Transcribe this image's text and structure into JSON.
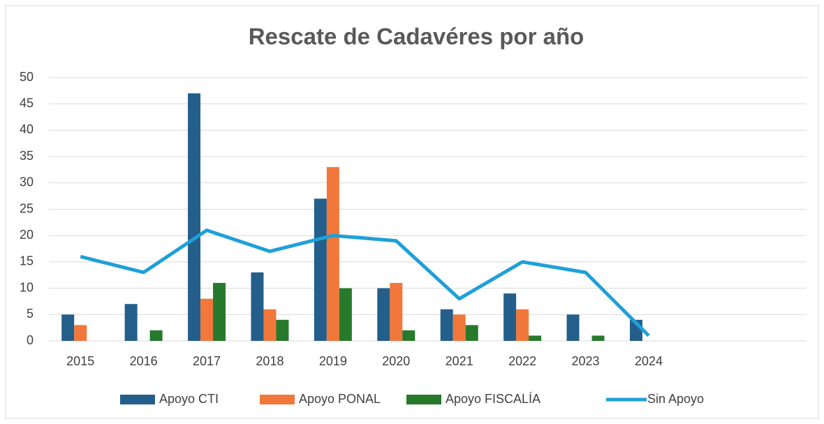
{
  "chart_data": {
    "type": "bar",
    "title": "Rescate de Cadavéres por año",
    "categories": [
      "2015",
      "2016",
      "2017",
      "2018",
      "2019",
      "2020",
      "2021",
      "2022",
      "2023",
      "2024",
      null,
      null
    ],
    "series": [
      {
        "name": "Apoyo CTI",
        "color": "#235f8a",
        "values": [
          5,
          7,
          47,
          13,
          27,
          10,
          6,
          9,
          5,
          4,
          null,
          null
        ]
      },
      {
        "name": "Apoyo PONAL",
        "color": "#f2773a",
        "values": [
          3,
          null,
          8,
          6,
          33,
          11,
          5,
          6,
          null,
          null,
          null,
          null
        ]
      },
      {
        "name": "Apoyo FISCALÍA",
        "color": "#27792b",
        "values": [
          null,
          2,
          11,
          4,
          10,
          2,
          3,
          1,
          1,
          null,
          null,
          null
        ]
      },
      {
        "name": "Sin Apoyo",
        "color": "#1ea0d8",
        "type": "line",
        "values": [
          16,
          13,
          21,
          17,
          20,
          19,
          8,
          15,
          13,
          1,
          null,
          null
        ]
      }
    ],
    "ylim": [
      0,
      50
    ],
    "yticks": [
      0,
      5,
      10,
      15,
      20,
      25,
      30,
      35,
      40,
      45,
      50
    ],
    "grid": true,
    "legend": "bottom"
  }
}
